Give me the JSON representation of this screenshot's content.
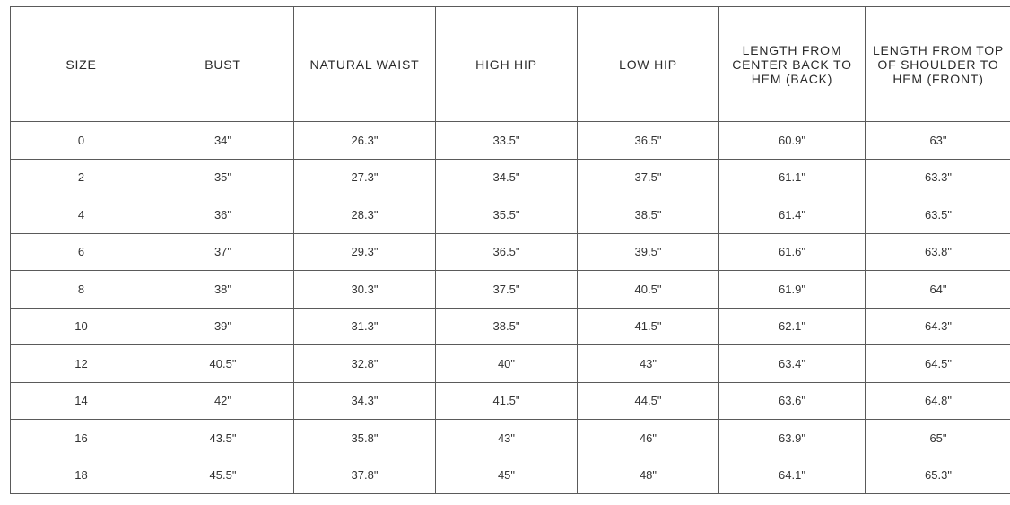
{
  "size_chart": {
    "headers": [
      "SIZE",
      "BUST",
      "NATURAL WAIST",
      "HIGH HIP",
      "LOW HIP",
      "LENGTH FROM CENTER BACK TO HEM (BACK)",
      "LENGTH FROM TOP OF SHOULDER TO HEM (FRONT)"
    ],
    "rows": [
      [
        "0",
        "34\"",
        "26.3\"",
        "33.5\"",
        "36.5\"",
        "60.9\"",
        "63\""
      ],
      [
        "2",
        "35\"",
        "27.3\"",
        "34.5\"",
        "37.5\"",
        "61.1\"",
        "63.3\""
      ],
      [
        "4",
        "36\"",
        "28.3\"",
        "35.5\"",
        "38.5\"",
        "61.4\"",
        "63.5\""
      ],
      [
        "6",
        "37\"",
        "29.3\"",
        "36.5\"",
        "39.5\"",
        "61.6\"",
        "63.8\""
      ],
      [
        "8",
        "38\"",
        "30.3\"",
        "37.5\"",
        "40.5\"",
        "61.9\"",
        "64\""
      ],
      [
        "10",
        "39\"",
        "31.3\"",
        "38.5\"",
        "41.5\"",
        "62.1\"",
        "64.3\""
      ],
      [
        "12",
        "40.5\"",
        "32.8\"",
        "40\"",
        "43\"",
        "63.4\"",
        "64.5\""
      ],
      [
        "14",
        "42\"",
        "34.3\"",
        "41.5\"",
        "44.5\"",
        "63.6\"",
        "64.8\""
      ],
      [
        "16",
        "43.5\"",
        "35.8\"",
        "43\"",
        "46\"",
        "63.9\"",
        "65\""
      ],
      [
        "18",
        "45.5\"",
        "37.8\"",
        "45\"",
        "48\"",
        "64.1\"",
        "65.3\""
      ]
    ]
  }
}
